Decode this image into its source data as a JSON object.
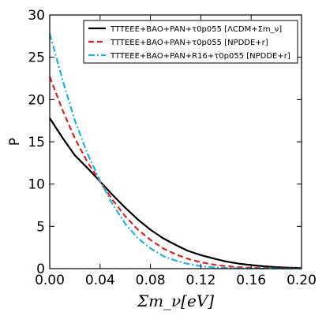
{
  "chart_data": {
    "type": "line",
    "xlabel": "Σm_ν[eV]",
    "ylabel": "P",
    "xlim": [
      0.0,
      0.2
    ],
    "ylim": [
      0,
      30
    ],
    "xticks": [
      "0.00",
      "0.04",
      "0.08",
      "0.12",
      "0.16",
      "0.20"
    ],
    "yticks": [
      "0",
      "5",
      "10",
      "15",
      "20",
      "25",
      "30"
    ],
    "grid": false,
    "legend_position": "top-right",
    "series": [
      {
        "name": "TTTEEE+BAO+PAN+τ0p055 [ΛCDM+Σm_ν]",
        "color": "#000000",
        "dash": "solid",
        "x": [
          0.0,
          0.01,
          0.02,
          0.03,
          0.04,
          0.05,
          0.06,
          0.07,
          0.08,
          0.09,
          0.1,
          0.11,
          0.12,
          0.13,
          0.14,
          0.15,
          0.16,
          0.17,
          0.18,
          0.19,
          0.2
        ],
        "y": [
          17.8,
          15.5,
          13.4,
          11.9,
          10.3,
          8.7,
          7.2,
          5.8,
          4.6,
          3.6,
          2.8,
          2.1,
          1.6,
          1.2,
          0.85,
          0.6,
          0.42,
          0.28,
          0.18,
          0.11,
          0.07
        ]
      },
      {
        "name": "TTTEEE+BAO+PAN+τ0p055 [NPDDE+r]",
        "color": "#e8201c",
        "dash": "dashed",
        "x": [
          0.0,
          0.01,
          0.02,
          0.03,
          0.04,
          0.05,
          0.06,
          0.07,
          0.08,
          0.09,
          0.1,
          0.11,
          0.12,
          0.13,
          0.14,
          0.15,
          0.16,
          0.17,
          0.18,
          0.19,
          0.2
        ],
        "y": [
          22.7,
          18.8,
          15.4,
          12.6,
          10.3,
          8.1,
          6.2,
          4.6,
          3.4,
          2.4,
          1.7,
          1.15,
          0.75,
          0.48,
          0.3,
          0.18,
          0.1,
          0.06,
          0.03,
          0.015,
          0.01
        ]
      },
      {
        "name": "TTTEEE+BAO+PAN+R16+τ0p055 [NPDDE+r]",
        "color": "#1ab3e6",
        "dash": "dashdot",
        "x": [
          0.0,
          0.01,
          0.02,
          0.03,
          0.04,
          0.05,
          0.06,
          0.07,
          0.08,
          0.09,
          0.1,
          0.11,
          0.12,
          0.13,
          0.14,
          0.15,
          0.16,
          0.17,
          0.18,
          0.19,
          0.2
        ],
        "y": [
          27.8,
          22.4,
          17.5,
          13.6,
          10.4,
          7.6,
          5.3,
          3.6,
          2.4,
          1.5,
          0.95,
          0.55,
          0.3,
          0.16,
          0.08,
          0.04,
          0.02,
          0.01,
          0.005,
          0.002,
          0.001
        ]
      }
    ]
  }
}
